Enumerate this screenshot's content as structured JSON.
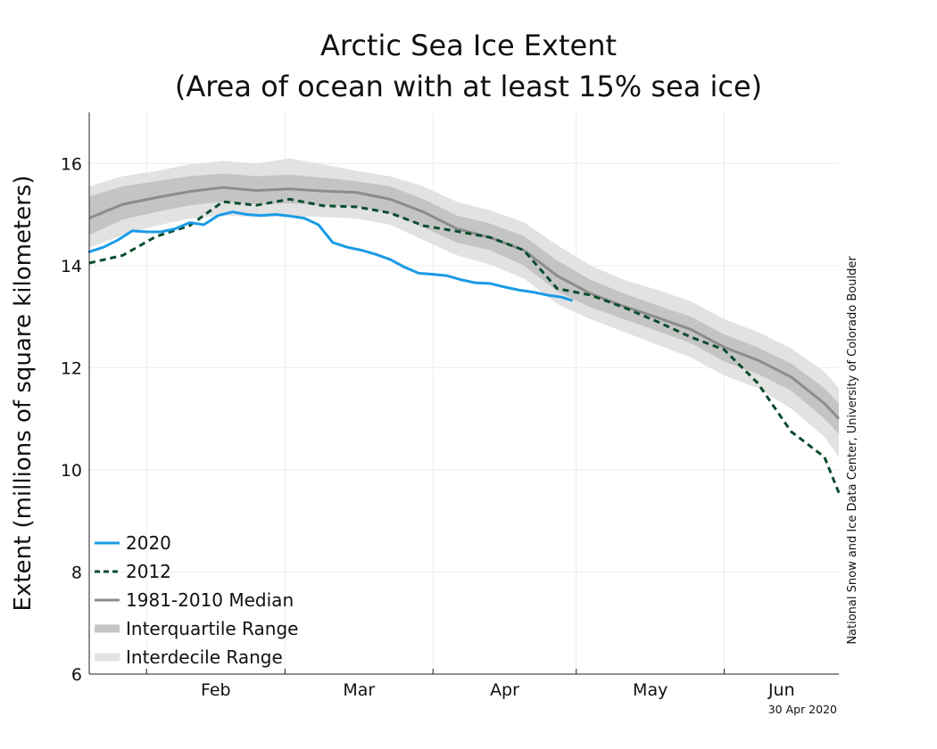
{
  "chart_data": {
    "type": "line",
    "title": "Arctic Sea Ice Extent",
    "subtitle": "(Area of ocean with at least 15% sea ice)",
    "ylabel": "Extent (millions of square kilometers)",
    "xlabel": "",
    "ylim": [
      6,
      17
    ],
    "yticks": [
      6,
      8,
      10,
      12,
      14,
      16
    ],
    "xlim": [
      "Jan 20",
      "Jun 25"
    ],
    "x_tick_labels": [
      "Feb",
      "Mar",
      "Apr",
      "May",
      "Jun"
    ],
    "grid": true,
    "legend_position": "bottom-left",
    "credit": "National Snow and Ice Data Center, University of Colorado Boulder",
    "date_stamp": "30 Apr 2020",
    "colors": {
      "2020": "#1a9be6",
      "2012": "#0b4d2c",
      "median": "#8c8c8c",
      "interquartile": "#c4c4c4",
      "interdecile": "#e2e2e2",
      "grid": "#ececec"
    },
    "series": [
      {
        "name": "2020",
        "x": [
          "Jan 20",
          "Jan 23",
          "Jan 26",
          "Jan 29",
          "Feb 1",
          "Feb 4",
          "Feb 7",
          "Feb 10",
          "Feb 13",
          "Feb 16",
          "Feb 19",
          "Feb 22",
          "Feb 25",
          "Feb 28",
          "Mar 2",
          "Mar 5",
          "Mar 8",
          "Mar 11",
          "Mar 14",
          "Mar 17",
          "Mar 20",
          "Mar 23",
          "Mar 26",
          "Mar 29",
          "Apr 1",
          "Apr 4",
          "Apr 7",
          "Apr 10",
          "Apr 13",
          "Apr 16",
          "Apr 19",
          "Apr 22",
          "Apr 25",
          "Apr 28",
          "Apr 30"
        ],
        "values": [
          14.27,
          14.36,
          14.5,
          14.68,
          14.66,
          14.66,
          14.72,
          14.84,
          14.8,
          14.98,
          15.05,
          15.0,
          14.98,
          15.0,
          14.97,
          14.93,
          14.8,
          14.45,
          14.36,
          14.3,
          14.22,
          14.12,
          13.97,
          13.85,
          13.83,
          13.8,
          13.72,
          13.66,
          13.65,
          13.58,
          13.52,
          13.48,
          13.42,
          13.38,
          13.32
        ]
      },
      {
        "name": "2012",
        "x": [
          "Jan 20",
          "Jan 27",
          "Feb 3",
          "Feb 10",
          "Feb 17",
          "Feb 24",
          "Mar 2",
          "Mar 9",
          "Mar 16",
          "Mar 23",
          "Mar 30",
          "Apr 6",
          "Apr 13",
          "Apr 20",
          "Apr 27",
          "May 4",
          "May 11",
          "May 18",
          "May 25",
          "Jun 1",
          "Jun 8",
          "Jun 15",
          "Jun 22",
          "Jun 25"
        ],
        "values": [
          14.05,
          14.2,
          14.57,
          14.78,
          15.25,
          15.18,
          15.3,
          15.17,
          15.15,
          15.03,
          14.78,
          14.67,
          14.55,
          14.3,
          13.55,
          13.42,
          13.18,
          12.9,
          12.6,
          12.35,
          11.7,
          10.75,
          10.25,
          9.55
        ]
      },
      {
        "name": "1981-2010 Median",
        "x": [
          "Jan 20",
          "Jan 27",
          "Feb 3",
          "Feb 10",
          "Feb 17",
          "Feb 24",
          "Mar 2",
          "Mar 9",
          "Mar 16",
          "Mar 23",
          "Mar 30",
          "Apr 6",
          "Apr 13",
          "Apr 20",
          "Apr 27",
          "May 4",
          "May 11",
          "May 18",
          "May 25",
          "Jun 1",
          "Jun 8",
          "Jun 15",
          "Jun 22",
          "Jun 25"
        ],
        "values": [
          14.93,
          15.2,
          15.33,
          15.45,
          15.53,
          15.47,
          15.5,
          15.46,
          15.43,
          15.3,
          15.05,
          14.72,
          14.55,
          14.3,
          13.8,
          13.45,
          13.2,
          12.98,
          12.75,
          12.4,
          12.15,
          11.82,
          11.3,
          11.0
        ]
      },
      {
        "name": "Interquartile Range",
        "x": [
          "Jan 20",
          "Jan 27",
          "Feb 3",
          "Feb 10",
          "Feb 17",
          "Feb 24",
          "Mar 2",
          "Mar 9",
          "Mar 16",
          "Mar 23",
          "Mar 30",
          "Apr 6",
          "Apr 13",
          "Apr 20",
          "Apr 27",
          "May 4",
          "May 11",
          "May 18",
          "May 25",
          "Jun 1",
          "Jun 8",
          "Jun 15",
          "Jun 22",
          "Jun 25"
        ],
        "upper": [
          15.35,
          15.55,
          15.65,
          15.75,
          15.8,
          15.75,
          15.78,
          15.72,
          15.65,
          15.55,
          15.3,
          14.98,
          14.82,
          14.58,
          14.1,
          13.72,
          13.45,
          13.22,
          13.0,
          12.65,
          12.4,
          12.08,
          11.6,
          11.3
        ],
        "lower": [
          14.6,
          14.9,
          15.05,
          15.18,
          15.25,
          15.2,
          15.22,
          15.18,
          15.15,
          15.02,
          14.75,
          14.45,
          14.3,
          14.0,
          13.5,
          13.18,
          12.95,
          12.72,
          12.48,
          12.12,
          11.88,
          11.55,
          11.0,
          10.7
        ]
      },
      {
        "name": "Interdecile Range",
        "x": [
          "Jan 20",
          "Jan 27",
          "Feb 3",
          "Feb 10",
          "Feb 17",
          "Feb 24",
          "Mar 2",
          "Mar 9",
          "Mar 16",
          "Mar 23",
          "Mar 30",
          "Apr 6",
          "Apr 13",
          "Apr 20",
          "Apr 27",
          "May 4",
          "May 11",
          "May 18",
          "May 25",
          "Jun 1",
          "Jun 8",
          "Jun 15",
          "Jun 22",
          "Jun 25"
        ],
        "upper": [
          15.55,
          15.75,
          15.85,
          15.98,
          16.05,
          16.0,
          16.1,
          15.98,
          15.85,
          15.75,
          15.55,
          15.25,
          15.08,
          14.85,
          14.4,
          14.0,
          13.72,
          13.52,
          13.3,
          12.95,
          12.7,
          12.38,
          11.92,
          11.6
        ],
        "lower": [
          14.35,
          14.6,
          14.78,
          14.92,
          14.98,
          14.95,
          14.97,
          14.95,
          14.92,
          14.8,
          14.5,
          14.2,
          14.02,
          13.75,
          13.25,
          12.95,
          12.7,
          12.45,
          12.2,
          11.85,
          11.6,
          11.2,
          10.65,
          10.25
        ]
      }
    ]
  }
}
